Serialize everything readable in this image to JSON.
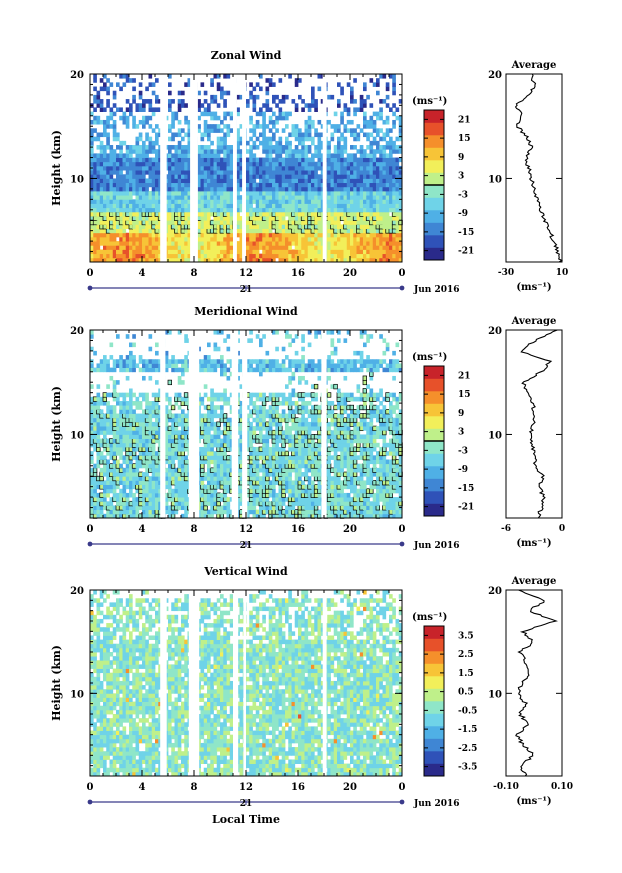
{
  "figure": {
    "xlabel": "Local Time"
  },
  "colors": {
    "axis": "#000000",
    "date_bar": "#3a3a8a"
  },
  "chart_data": [
    {
      "type": "heatmap",
      "title": "Zonal Wind",
      "ylabel": "Height (km)",
      "y_ticks": [
        "10",
        "20"
      ],
      "x_ticks": [
        "0",
        "4",
        "8",
        "12",
        "16",
        "20",
        "0"
      ],
      "xlim": [
        0,
        24
      ],
      "ylim": [
        2,
        20
      ],
      "day_label": "21",
      "date_label": "Jun 2016",
      "colorbar": {
        "unit": "(ms⁻¹)",
        "ticks": [
          "21",
          "15",
          "9",
          "3",
          "-3",
          "-9",
          "-15",
          "-21"
        ],
        "range": [
          -24,
          24
        ],
        "contour": 0
      },
      "data_gaps_hours": [
        [
          5.4,
          5.9
        ],
        [
          7.7,
          8.3
        ],
        [
          11.0,
          11.3
        ],
        [
          11.7,
          12.0
        ],
        [
          17.9,
          18.2
        ]
      ],
      "profile": {
        "title": "Average",
        "xlabel": "(ms⁻¹)",
        "x_ticks": [
          "-30",
          "10"
        ],
        "xlim": [
          -30,
          10
        ],
        "y_ticks": [
          "10",
          "20"
        ],
        "height_km": [
          2,
          3,
          4,
          5,
          6,
          7,
          8,
          9,
          10,
          11,
          12,
          13,
          14,
          15,
          16,
          17,
          18,
          19,
          20
        ],
        "value": [
          9,
          7,
          4,
          1,
          -2,
          -5,
          -8,
          -10,
          -12,
          -14,
          -16,
          -12,
          -15,
          -22,
          -18,
          -23,
          -13,
          -10,
          -12
        ]
      }
    },
    {
      "type": "heatmap",
      "title": "Meridional Wind",
      "ylabel": "Height (km)",
      "y_ticks": [
        "10",
        "20"
      ],
      "x_ticks": [
        "0",
        "4",
        "8",
        "12",
        "16",
        "20",
        "0"
      ],
      "xlim": [
        0,
        24
      ],
      "ylim": [
        2,
        20
      ],
      "day_label": "21",
      "date_label": "Jun 2016",
      "colorbar": {
        "unit": "(ms⁻¹)",
        "ticks": [
          "21",
          "15",
          "9",
          "3",
          "-3",
          "-9",
          "-15",
          "-21"
        ],
        "range": [
          -24,
          24
        ],
        "contour": 0
      },
      "data_gaps_hours": [
        [
          5.4,
          5.8
        ],
        [
          7.6,
          8.4
        ],
        [
          10.9,
          11.4
        ],
        [
          11.7,
          12.1
        ],
        [
          17.8,
          18.2
        ]
      ],
      "profile": {
        "title": "Average",
        "xlabel": "(ms⁻¹)",
        "x_ticks": [
          "-6",
          "0"
        ],
        "xlim": [
          -6,
          0
        ],
        "y_ticks": [
          "10",
          "20"
        ],
        "height_km": [
          2,
          3,
          4,
          5,
          6,
          7,
          8,
          9,
          10,
          11,
          12,
          13,
          14,
          15,
          16,
          17,
          18,
          19,
          20
        ],
        "value": [
          -2.6,
          -2.2,
          -2.0,
          -2.4,
          -2.1,
          -2.8,
          -3.0,
          -3.2,
          -3.4,
          -3.1,
          -2.9,
          -3.2,
          -3.6,
          -4.2,
          -2.2,
          -1.2,
          -4.5,
          -2.8,
          -0.5
        ]
      }
    },
    {
      "type": "heatmap",
      "title": "Vertical Wind",
      "ylabel": "Height (km)",
      "y_ticks": [
        "10",
        "20"
      ],
      "x_ticks": [
        "0",
        "4",
        "8",
        "12",
        "16",
        "20",
        "0"
      ],
      "xlim": [
        0,
        24
      ],
      "ylim": [
        2,
        20
      ],
      "day_label": "21",
      "date_label": "Jun 2016",
      "colorbar": {
        "unit": "(ms⁻¹)",
        "ticks": [
          "3.5",
          "2.5",
          "1.5",
          "0.5",
          "-0.5",
          "-1.5",
          "-2.5",
          "-3.5"
        ],
        "range": [
          -4,
          4
        ]
      },
      "data_gaps_hours": [
        [
          5.4,
          5.9
        ],
        [
          7.6,
          8.4
        ],
        [
          11.0,
          11.4
        ],
        [
          11.8,
          12.0
        ],
        [
          17.9,
          18.2
        ]
      ],
      "profile": {
        "title": "Average",
        "xlabel": "(ms⁻¹)",
        "x_ticks": [
          "-0.10",
          "0.10"
        ],
        "xlim": [
          -0.1,
          0.1
        ],
        "y_ticks": [
          "10",
          "20"
        ],
        "height_km": [
          2,
          3,
          4,
          5,
          6,
          7,
          8,
          9,
          10,
          11,
          12,
          13,
          14,
          15,
          16,
          17,
          18,
          19,
          20
        ],
        "value": [
          -0.03,
          -0.05,
          0.0,
          -0.04,
          -0.06,
          -0.02,
          -0.05,
          -0.03,
          -0.06,
          -0.04,
          -0.02,
          -0.03,
          -0.05,
          0.0,
          -0.04,
          0.08,
          -0.02,
          0.04,
          -0.06
        ]
      }
    }
  ]
}
